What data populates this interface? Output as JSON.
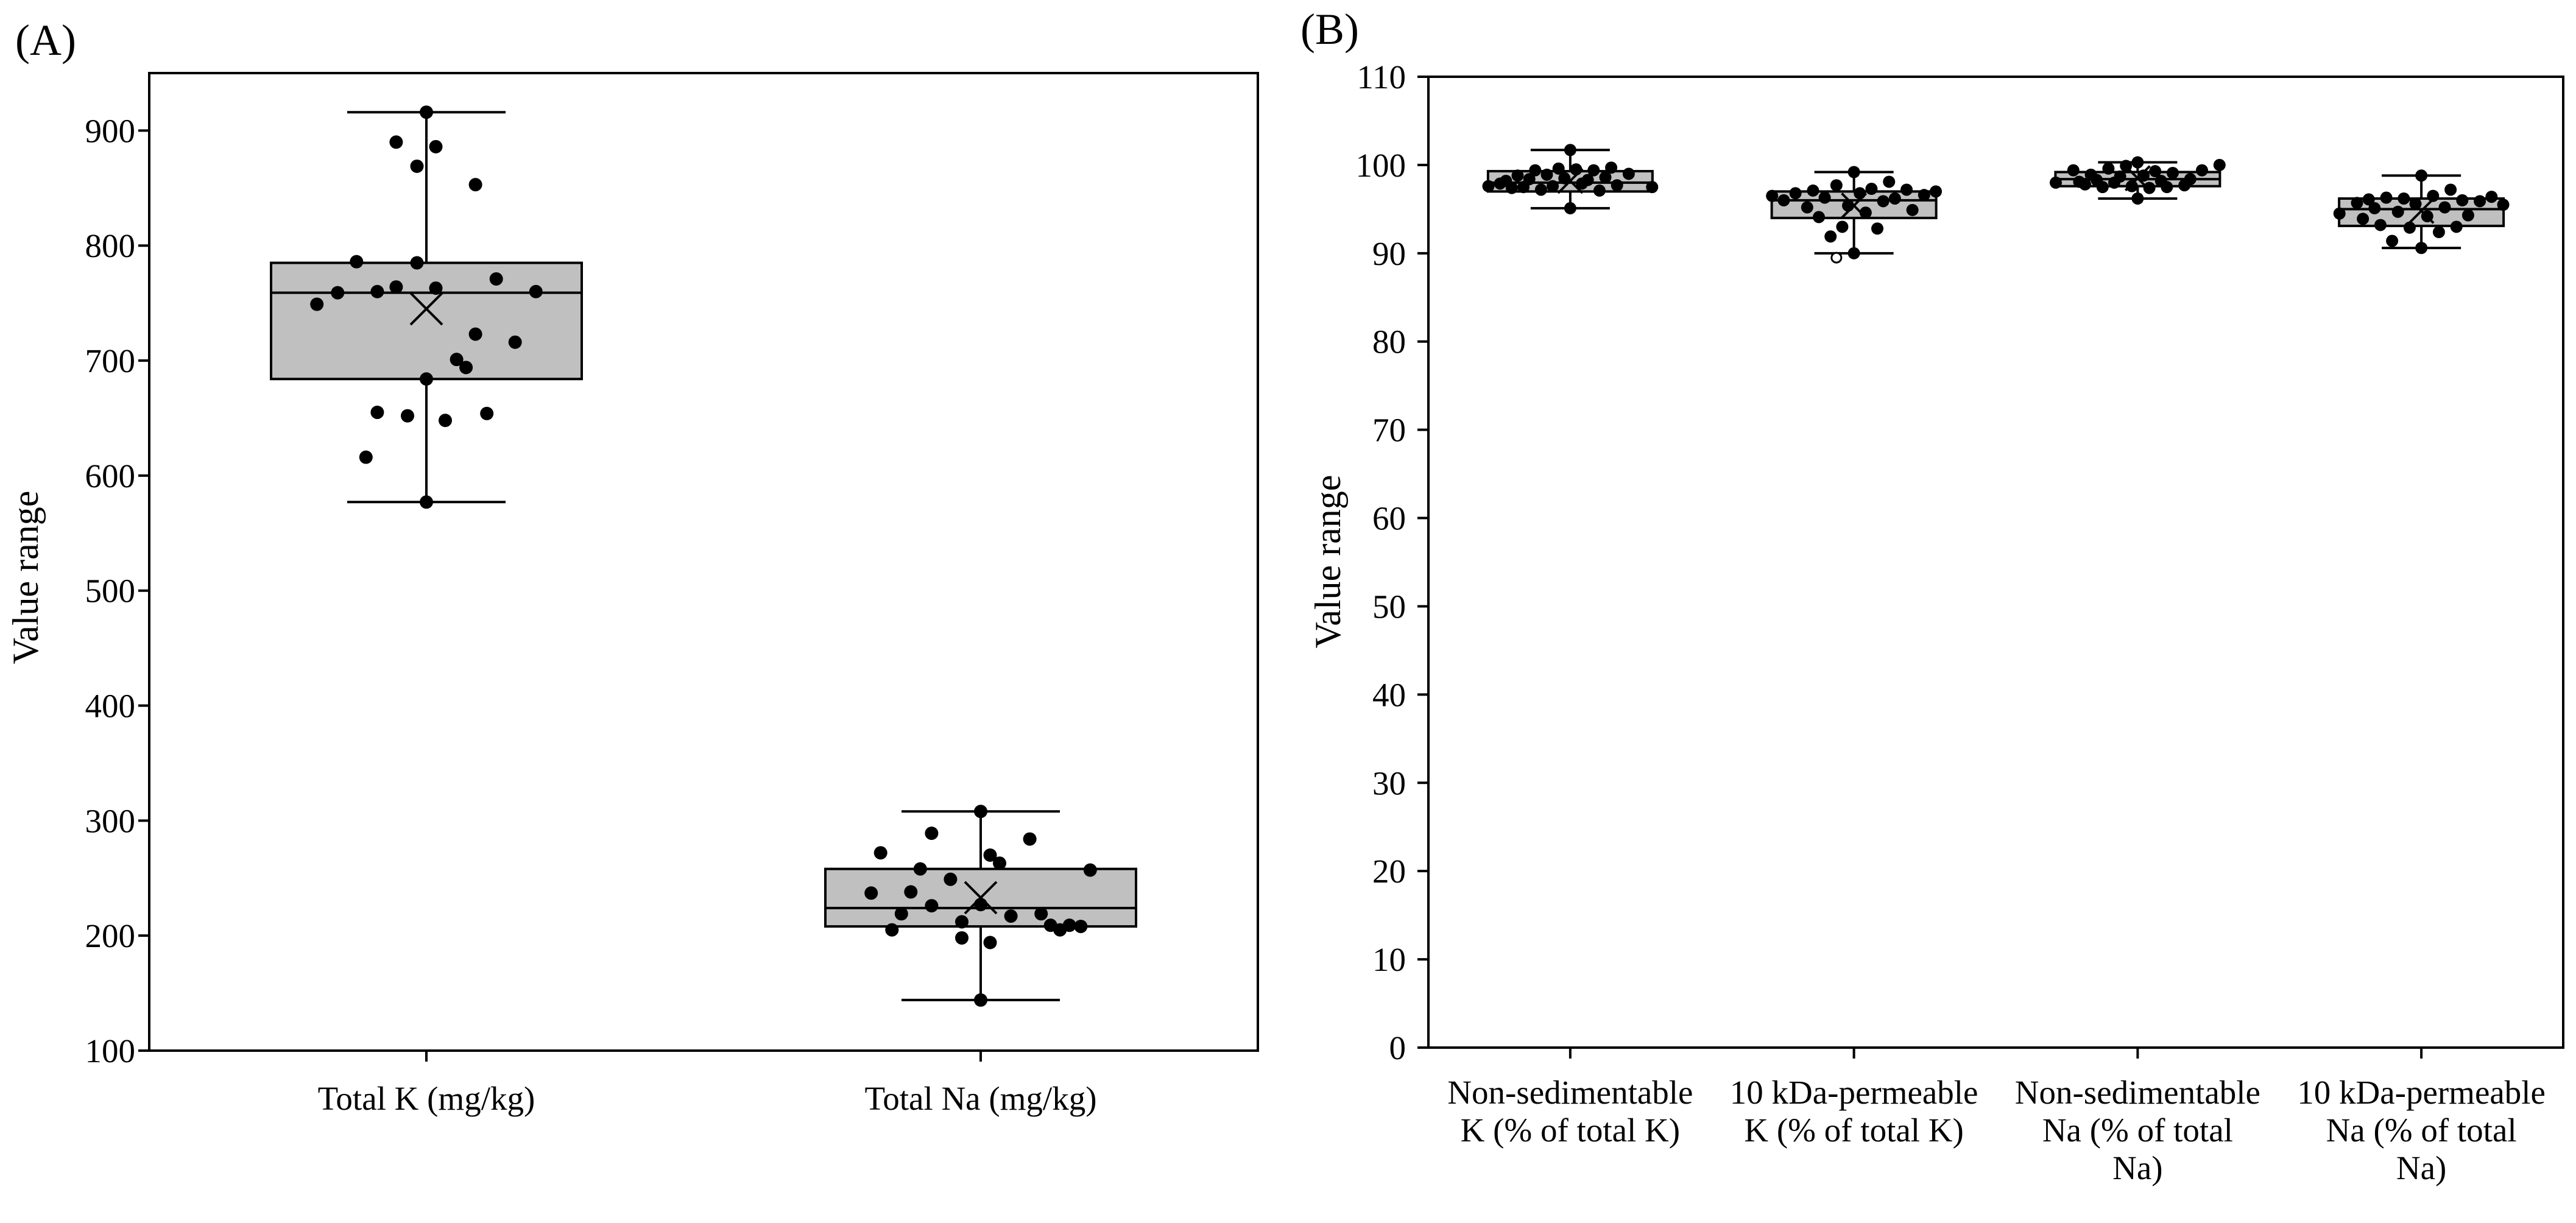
{
  "chart_data": [
    {
      "type": "box",
      "panel_label": "(A)",
      "ylabel": "Value range",
      "xlabel": "",
      "ylim": [
        100,
        950
      ],
      "yticks": [
        100,
        200,
        300,
        400,
        500,
        600,
        700,
        800,
        900
      ],
      "box_fill": "#c0c0c0",
      "categories": [
        "Total K (mg/kg)",
        "Total Na (mg/kg)"
      ],
      "boxes": [
        {
          "name": "Total K (mg/kg)",
          "whisker_low": 577,
          "q1": 684,
          "median": 759,
          "q3": 785,
          "whisker_high": 916,
          "mean": 745,
          "points": [
            [
              -0.58,
              749
            ],
            [
              -0.47,
              759
            ],
            [
              -0.37,
              786
            ],
            [
              -0.32,
              616
            ],
            [
              -0.26,
              655
            ],
            [
              -0.26,
              760
            ],
            [
              -0.16,
              890
            ],
            [
              -0.16,
              764
            ],
            [
              -0.1,
              652
            ],
            [
              -0.05,
              869
            ],
            [
              -0.05,
              785
            ],
            [
              0,
              916
            ],
            [
              0,
              684
            ],
            [
              0,
              577
            ],
            [
              0.05,
              886
            ],
            [
              0.05,
              763
            ],
            [
              0.1,
              648
            ],
            [
              0.16,
              701
            ],
            [
              0.21,
              694
            ],
            [
              0.26,
              853
            ],
            [
              0.26,
              723
            ],
            [
              0.32,
              654
            ],
            [
              0.37,
              771
            ],
            [
              0.47,
              716
            ],
            [
              0.58,
              760
            ]
          ]
        },
        {
          "name": "Total Na (mg/kg)",
          "whisker_low": 144,
          "q1": 208,
          "median": 224,
          "q3": 258,
          "whisker_high": 308,
          "mean": 233,
          "points": [
            [
              -0.58,
              237
            ],
            [
              -0.53,
              272
            ],
            [
              -0.47,
              205
            ],
            [
              -0.42,
              219
            ],
            [
              -0.37,
              238
            ],
            [
              -0.32,
              258
            ],
            [
              -0.26,
              289
            ],
            [
              -0.26,
              226
            ],
            [
              -0.16,
              249
            ],
            [
              -0.1,
              212
            ],
            [
              -0.1,
              198
            ],
            [
              0,
              308
            ],
            [
              0,
              227
            ],
            [
              0,
              144
            ],
            [
              0.05,
              194
            ],
            [
              0.05,
              270
            ],
            [
              0.1,
              263
            ],
            [
              0.16,
              217
            ],
            [
              0.26,
              284
            ],
            [
              0.32,
              219
            ],
            [
              0.37,
              209
            ],
            [
              0.42,
              205
            ],
            [
              0.47,
              209
            ],
            [
              0.53,
              208
            ],
            [
              0.58,
              257
            ]
          ]
        }
      ]
    },
    {
      "type": "box",
      "panel_label": "(B)",
      "ylabel": "Value range",
      "xlabel": "",
      "ylim": [
        0,
        110
      ],
      "yticks": [
        0,
        10,
        20,
        30,
        40,
        50,
        60,
        70,
        80,
        90,
        100,
        110
      ],
      "box_fill": "#c0c0c0",
      "categories": [
        [
          "Non-sedimentable",
          "K (% of total K)"
        ],
        [
          "10 kDa-permeable",
          "K (% of total K)"
        ],
        [
          "Non-sedimentable",
          "Na (% of total",
          "Na)"
        ],
        [
          "10 kDa-permeable",
          "Na (% of total",
          "Na)"
        ]
      ],
      "boxes": [
        {
          "name": "Non-sedimentable K (% of total K)",
          "whisker_low": 95.1,
          "q1": 97.0,
          "median": 98.0,
          "q3": 99.3,
          "whisker_high": 101.7,
          "mean": 98.2,
          "points": [
            [
              -0.84,
              97.6
            ],
            [
              -0.72,
              97.9
            ],
            [
              -0.66,
              98.2
            ],
            [
              -0.6,
              97.4
            ],
            [
              -0.54,
              98.8
            ],
            [
              -0.48,
              97.5
            ],
            [
              -0.42,
              98.4
            ],
            [
              -0.36,
              99.4
            ],
            [
              -0.3,
              97.2
            ],
            [
              -0.24,
              98.9
            ],
            [
              -0.18,
              97.6
            ],
            [
              -0.12,
              99.6
            ],
            [
              -0.06,
              98.5
            ],
            [
              0,
              101.7
            ],
            [
              0,
              95.1
            ],
            [
              0.06,
              99.5
            ],
            [
              0.12,
              97.9
            ],
            [
              0.18,
              98.3
            ],
            [
              0.24,
              99.4
            ],
            [
              0.3,
              97.1
            ],
            [
              0.36,
              98.6
            ],
            [
              0.42,
              99.7
            ],
            [
              0.48,
              97.7
            ],
            [
              0.6,
              99.0
            ],
            [
              0.84,
              97.5
            ]
          ],
          "outliers": []
        },
        {
          "name": "10 kDa-permeable K (% of total K)",
          "whisker_low": 90.0,
          "q1": 94.0,
          "median": 96.0,
          "q3": 97.0,
          "whisker_high": 99.2,
          "mean": 95.4,
          "points": [
            [
              -0.84,
              96.5
            ],
            [
              -0.72,
              96.0
            ],
            [
              -0.6,
              96.8
            ],
            [
              -0.48,
              95.2
            ],
            [
              -0.42,
              97.1
            ],
            [
              -0.36,
              94.1
            ],
            [
              -0.3,
              96.3
            ],
            [
              -0.24,
              91.9
            ],
            [
              -0.18,
              97.7
            ],
            [
              -0.12,
              93.0
            ],
            [
              -0.06,
              95.4
            ],
            [
              0,
              99.2
            ],
            [
              0,
              90.0
            ],
            [
              0.06,
              96.8
            ],
            [
              0.12,
              94.6
            ],
            [
              0.18,
              97.3
            ],
            [
              0.24,
              92.8
            ],
            [
              0.3,
              95.9
            ],
            [
              0.36,
              98.1
            ],
            [
              0.42,
              96.2
            ],
            [
              0.54,
              97.2
            ],
            [
              0.6,
              94.9
            ],
            [
              0.72,
              96.6
            ],
            [
              0.84,
              97.0
            ]
          ],
          "outliers": [
            [
              -0.18,
              89.5
            ]
          ]
        },
        {
          "name": "Non-sedimentable Na (% of total Na)",
          "whisker_low": 96.2,
          "q1": 97.6,
          "median": 98.4,
          "q3": 99.2,
          "whisker_high": 100.3,
          "mean": 98.5,
          "points": [
            [
              -0.84,
              98.0
            ],
            [
              -0.66,
              99.4
            ],
            [
              -0.6,
              98.1
            ],
            [
              -0.54,
              97.8
            ],
            [
              -0.48,
              98.9
            ],
            [
              -0.42,
              98.3
            ],
            [
              -0.36,
              97.5
            ],
            [
              -0.3,
              99.6
            ],
            [
              -0.24,
              98.0
            ],
            [
              -0.18,
              98.7
            ],
            [
              -0.12,
              99.9
            ],
            [
              -0.06,
              97.6
            ],
            [
              0,
              100.3
            ],
            [
              0,
              96.2
            ],
            [
              0.06,
              98.8
            ],
            [
              0.12,
              97.4
            ],
            [
              0.18,
              99.3
            ],
            [
              0.24,
              98.2
            ],
            [
              0.3,
              97.5
            ],
            [
              0.36,
              99.1
            ],
            [
              0.48,
              97.7
            ],
            [
              0.54,
              98.4
            ],
            [
              0.66,
              99.4
            ],
            [
              0.84,
              100.0
            ]
          ],
          "outliers": []
        },
        {
          "name": "10 kDa-permeable Na (% of total Na)",
          "whisker_low": 90.6,
          "q1": 93.1,
          "median": 95.0,
          "q3": 96.2,
          "whisker_high": 98.8,
          "mean": 94.8,
          "points": [
            [
              -0.84,
              94.5
            ],
            [
              -0.66,
              95.7
            ],
            [
              -0.6,
              93.9
            ],
            [
              -0.54,
              96.1
            ],
            [
              -0.48,
              95.1
            ],
            [
              -0.42,
              93.2
            ],
            [
              -0.36,
              96.3
            ],
            [
              -0.3,
              91.4
            ],
            [
              -0.24,
              94.7
            ],
            [
              -0.18,
              96.2
            ],
            [
              -0.12,
              92.9
            ],
            [
              -0.06,
              95.6
            ],
            [
              0,
              98.8
            ],
            [
              0,
              90.6
            ],
            [
              0.06,
              94.2
            ],
            [
              0.12,
              96.5
            ],
            [
              0.18,
              92.4
            ],
            [
              0.24,
              95.2
            ],
            [
              0.3,
              97.2
            ],
            [
              0.36,
              93.0
            ],
            [
              0.42,
              96.0
            ],
            [
              0.48,
              94.3
            ],
            [
              0.6,
              95.9
            ],
            [
              0.72,
              96.4
            ],
            [
              0.84,
              95.5
            ]
          ],
          "outliers": []
        }
      ]
    }
  ]
}
